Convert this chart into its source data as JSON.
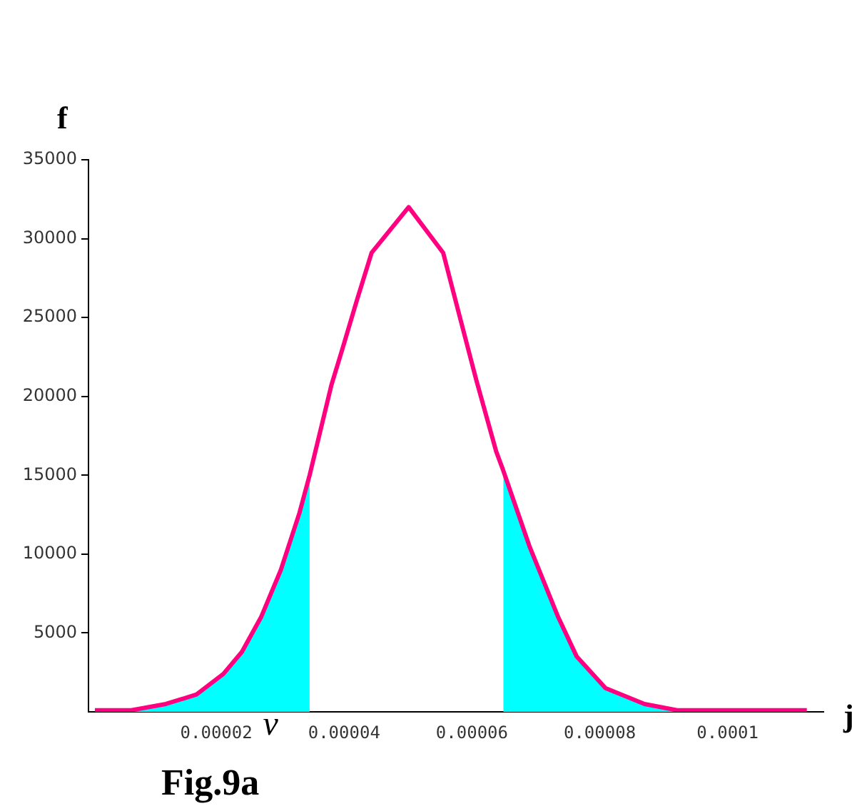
{
  "chart_data": {
    "type": "line",
    "xlabel": "j",
    "ylabel": "f",
    "xlim": [
      0,
      0.000115
    ],
    "ylim": [
      0,
      35000
    ],
    "xticks": [
      {
        "value": 2e-05,
        "label": "0.00002"
      },
      {
        "value": 4e-05,
        "label": "0.00004"
      },
      {
        "value": 6e-05,
        "label": "0.00006"
      },
      {
        "value": 8e-05,
        "label": "0.00008"
      },
      {
        "value": 0.0001,
        "label": "0.0001"
      }
    ],
    "yticks": [
      5000,
      10000,
      15000,
      20000,
      25000,
      30000,
      35000
    ],
    "grid": false,
    "legend": false,
    "marker": "none",
    "line_style": "solid",
    "annotations": [
      {
        "text": "ν",
        "x": 2.85e-05,
        "y": 0
      },
      "Fig.9a"
    ],
    "series": [
      {
        "type": "area",
        "color": "#00ffff",
        "x": [
          1e-06,
          6.7e-06,
          1.21e-05,
          1.69e-05,
          2.11e-05,
          2.4e-05,
          2.7e-05,
          3.01e-05,
          3.3e-05,
          3.46e-05
        ],
        "values": [
          100,
          100,
          500,
          1100,
          2400,
          3800,
          6000,
          9000,
          12600,
          15000
        ]
      },
      {
        "type": "area",
        "color": "#00ffff",
        "x": [
          6.49e-05,
          6.9e-05,
          7.35e-05,
          7.64e-05,
          8.09e-05,
          8.7e-05,
          9.21e-05
        ],
        "values": [
          15300,
          10500,
          6000,
          3500,
          1500,
          500,
          100
        ]
      },
      {
        "color": "#ff0080",
        "x": [
          1e-06,
          6.7e-06,
          1.21e-05,
          1.69e-05,
          2.11e-05,
          2.4e-05,
          2.7e-05,
          3.01e-05,
          3.3e-05,
          3.46e-05,
          3.8e-05,
          3.98e-05,
          4.2e-05,
          4.43e-05,
          5.01e-05,
          5.55e-05,
          5.78e-05,
          6.07e-05,
          6.38e-05,
          6.49e-05,
          6.9e-05,
          7.35e-05,
          7.64e-05,
          8.09e-05,
          8.7e-05,
          9.21e-05,
          0.0001124
        ],
        "values": [
          100,
          100,
          500,
          1100,
          2400,
          3800,
          6000,
          9000,
          12600,
          15000,
          20700,
          23100,
          26100,
          29100,
          32000,
          29100,
          25500,
          21000,
          16500,
          15300,
          10500,
          6000,
          3500,
          1500,
          500,
          100,
          100
        ]
      }
    ]
  }
}
